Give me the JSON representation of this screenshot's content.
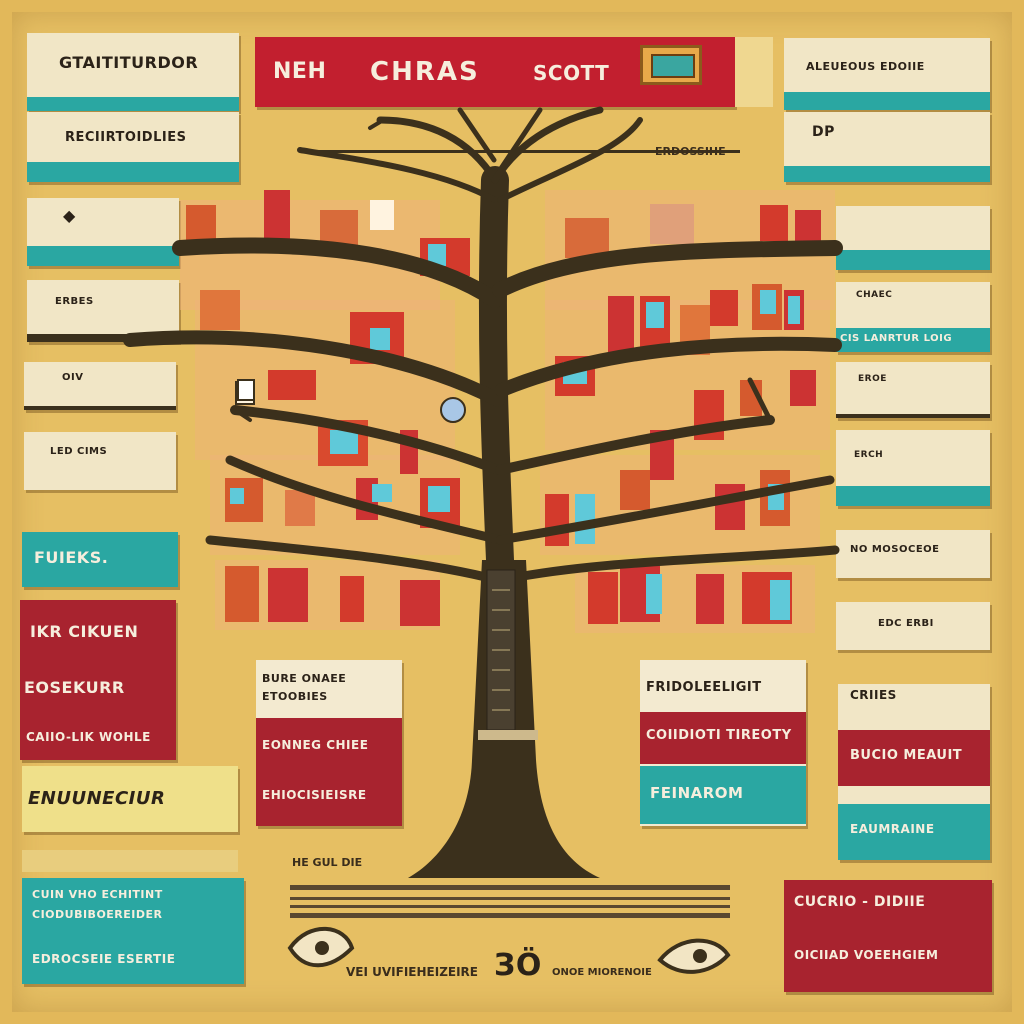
{
  "banner": {
    "left": "NEH",
    "title": "CHRAS",
    "right": "SCOTT"
  },
  "caption": {
    "top_right": "ERDOSSIHE"
  },
  "left": {
    "l1": "GTAITITURDOR",
    "l2": "RECIIRTOIDLIES",
    "l3": "ERBES",
    "l4": "OIV",
    "l5": "LED CIMS",
    "l6": "FUIEKS.",
    "red_l1": "IKR CIKUEN",
    "red_l2": "EOSEKURR",
    "red_l3": "CAIIO-LIK WOHLE",
    "yellow": "ENUUNECIUR",
    "teal_l1": "CUIN VHO    ECHITINT",
    "teal_l2": "CIODUBIBOEREIDER",
    "teal_l3": "EDROCSEIE ESERTIE"
  },
  "right": {
    "r1": "ALEUEOUS EDOIIE",
    "r2": "DP",
    "r3": "",
    "r4": "CHAEC",
    "r5": "CIS LANRTUR LOIG",
    "r6": "EROE",
    "r7": "ERCH",
    "r8": "NO MOSOCEOE",
    "r9": "EDC ERBI",
    "r10": "CRIIES",
    "red_r1": "BUCIO MEAUIT",
    "teal_r1": "EAUMRAINE",
    "bot_r1": "CUCRIO - DIDIIE",
    "bot_r2": "OICIIAD VOEEHGIEM"
  },
  "center_left": {
    "title_a": "BURE ONAEE",
    "title_b": "ETOOBIES",
    "red_a": "EONNEG CHIEE",
    "red_b": "EHIOCISIEISRE"
  },
  "center_right": {
    "title": "FRIDOLEELIGIT",
    "red": "COIIDIOTI TIREOTY",
    "teal": "FEINAROM"
  },
  "footer": {
    "small": "HE GUL DIE",
    "bottom_left": "VEI UVIFIEHEIZEIRE",
    "bottom_center": "ЗÖ",
    "bottom_right": "ONOE MIORENOIE"
  },
  "colors": {
    "background": "#e6bf63",
    "red": "#a8232f",
    "teal": "#2aa7a2",
    "cream": "#f1e6c6",
    "tree": "#3b301c"
  }
}
